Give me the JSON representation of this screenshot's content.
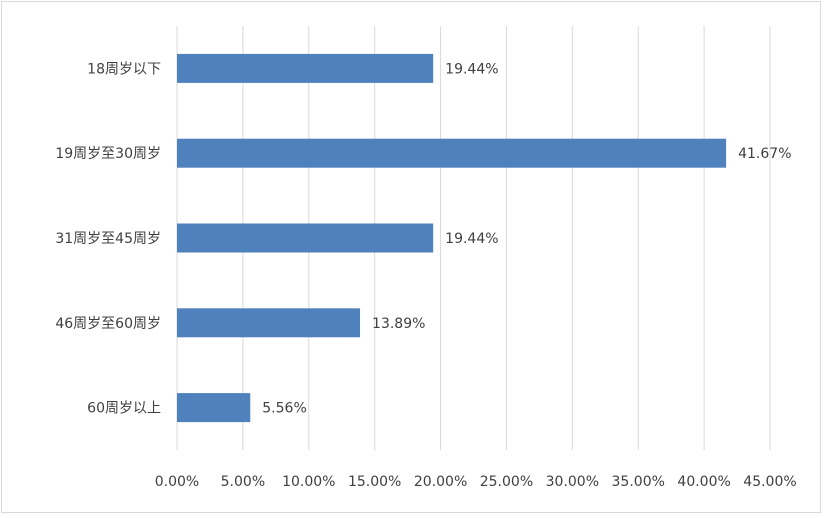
{
  "chart_data": {
    "type": "bar",
    "orientation": "horizontal",
    "categories": [
      "18周岁以下",
      "19周岁至30周岁",
      "31周岁至45周岁",
      "46周岁至60周岁",
      "60周岁以上"
    ],
    "values": [
      19.44,
      41.67,
      19.44,
      13.89,
      5.56
    ],
    "data_labels": [
      "19.44%",
      "41.67%",
      "19.44%",
      "13.89%",
      "5.56%"
    ],
    "x_ticks": [
      "0.00%",
      "5.00%",
      "10.00%",
      "15.00%",
      "20.00%",
      "25.00%",
      "30.00%",
      "35.00%",
      "40.00%",
      "45.00%"
    ],
    "xlim": [
      0,
      45
    ],
    "x_unit": "%",
    "title": "",
    "xlabel": "",
    "ylabel": "",
    "grid": "vertical",
    "legend": "none",
    "colors": {
      "bar": "#4f81bd",
      "grid": "#d9d9d9",
      "text": "#404040",
      "border": "#d9d9d9"
    }
  }
}
